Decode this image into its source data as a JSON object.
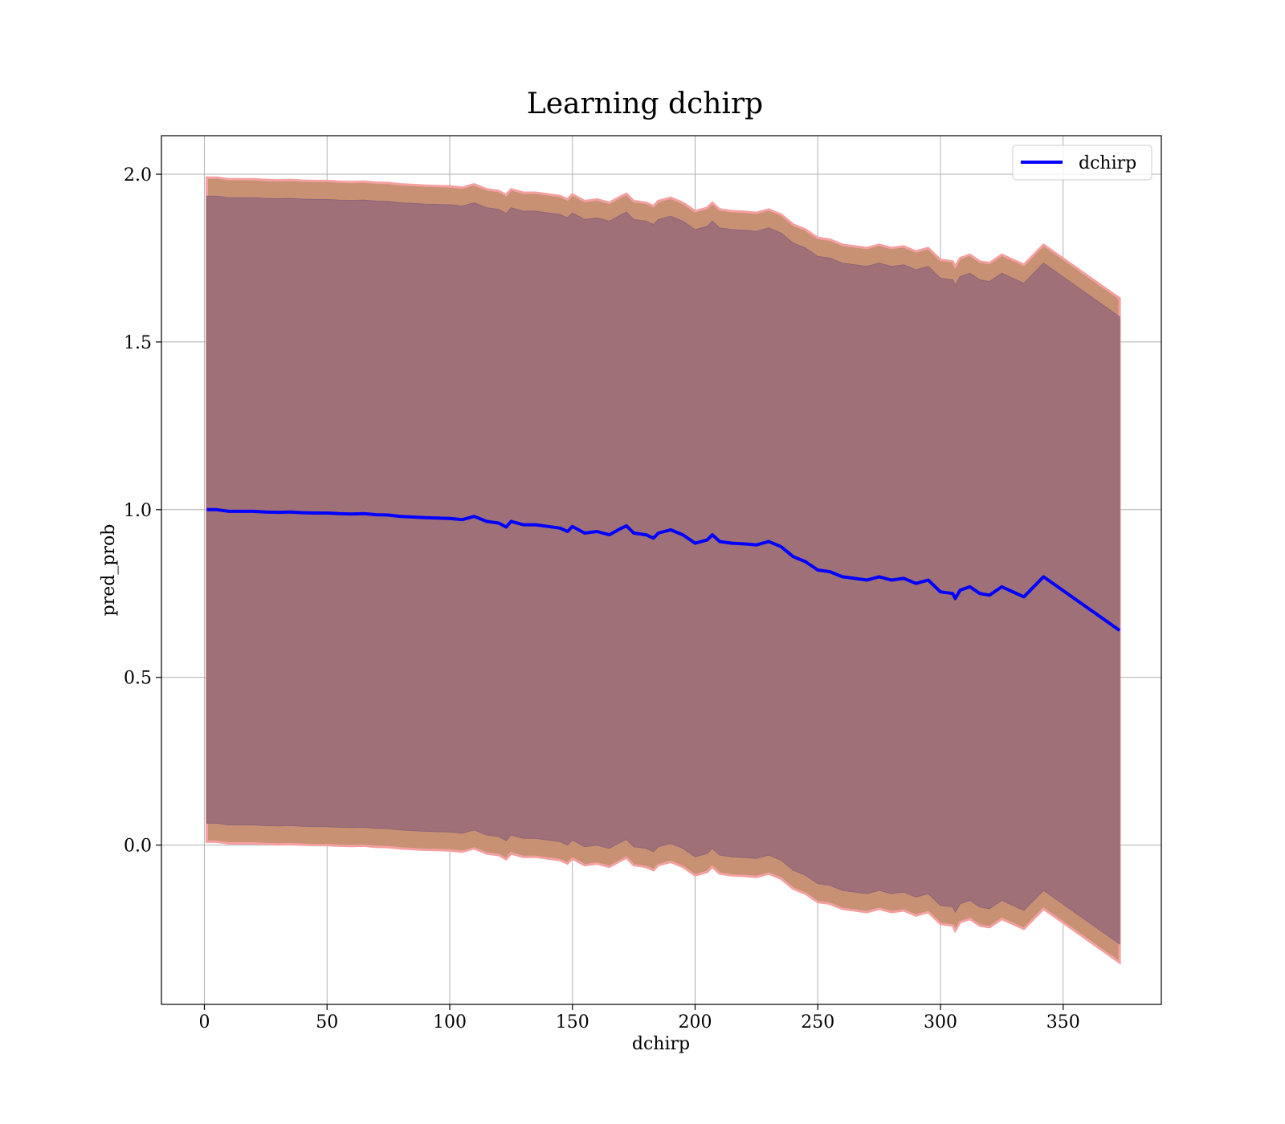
{
  "chart_data": {
    "type": "line",
    "title": "Learning dchirp",
    "xlabel": "dchirp",
    "ylabel": "pred_prob",
    "xlim": [
      -17.5,
      390
    ],
    "ylim": [
      -0.475,
      2.115
    ],
    "xticks": [
      0,
      50,
      100,
      150,
      200,
      250,
      300,
      350
    ],
    "yticks": [
      0.0,
      0.5,
      1.0,
      1.5,
      2.0
    ],
    "xtick_labels": [
      "0",
      "50",
      "100",
      "150",
      "200",
      "250",
      "300",
      "350"
    ],
    "ytick_labels": [
      "0.0",
      "0.5",
      "1.0",
      "1.5",
      "2.0"
    ],
    "grid": true,
    "legend_position": "top-right",
    "series": [
      {
        "name": "dchirp",
        "color": "#0000ff",
        "x": [
          1,
          5,
          10,
          15,
          20,
          25,
          30,
          35,
          40,
          45,
          50,
          55,
          60,
          65,
          70,
          75,
          80,
          85,
          90,
          95,
          100,
          105,
          110,
          115,
          120,
          123,
          125,
          130,
          135,
          140,
          145,
          148,
          150,
          155,
          160,
          165,
          170,
          172,
          175,
          180,
          183,
          185,
          190,
          195,
          198,
          200,
          205,
          207,
          210,
          215,
          220,
          225,
          230,
          235,
          240,
          245,
          250,
          255,
          260,
          265,
          270,
          275,
          280,
          285,
          290,
          295,
          300,
          305,
          306,
          308,
          312,
          316,
          320,
          325,
          334,
          342,
          373
        ],
        "y": [
          1.0,
          1.0,
          0.995,
          0.995,
          0.995,
          0.993,
          0.992,
          0.993,
          0.991,
          0.99,
          0.99,
          0.988,
          0.987,
          0.988,
          0.985,
          0.984,
          0.98,
          0.978,
          0.976,
          0.975,
          0.974,
          0.97,
          0.98,
          0.965,
          0.96,
          0.948,
          0.965,
          0.955,
          0.955,
          0.95,
          0.945,
          0.935,
          0.95,
          0.93,
          0.935,
          0.925,
          0.945,
          0.952,
          0.93,
          0.925,
          0.915,
          0.93,
          0.94,
          0.925,
          0.91,
          0.9,
          0.91,
          0.925,
          0.905,
          0.9,
          0.898,
          0.895,
          0.905,
          0.89,
          0.86,
          0.845,
          0.82,
          0.815,
          0.8,
          0.795,
          0.79,
          0.8,
          0.79,
          0.795,
          0.78,
          0.79,
          0.755,
          0.75,
          0.735,
          0.76,
          0.77,
          0.75,
          0.745,
          0.77,
          0.74,
          0.8,
          0.64
        ],
        "outer_band": {
          "color": "#c89174",
          "upper_offset": 0.99,
          "lower_offset": 0.99
        },
        "inner_band": {
          "color": "#a07079",
          "upper_offset": 0.935,
          "lower_offset": 0.935
        }
      }
    ]
  }
}
